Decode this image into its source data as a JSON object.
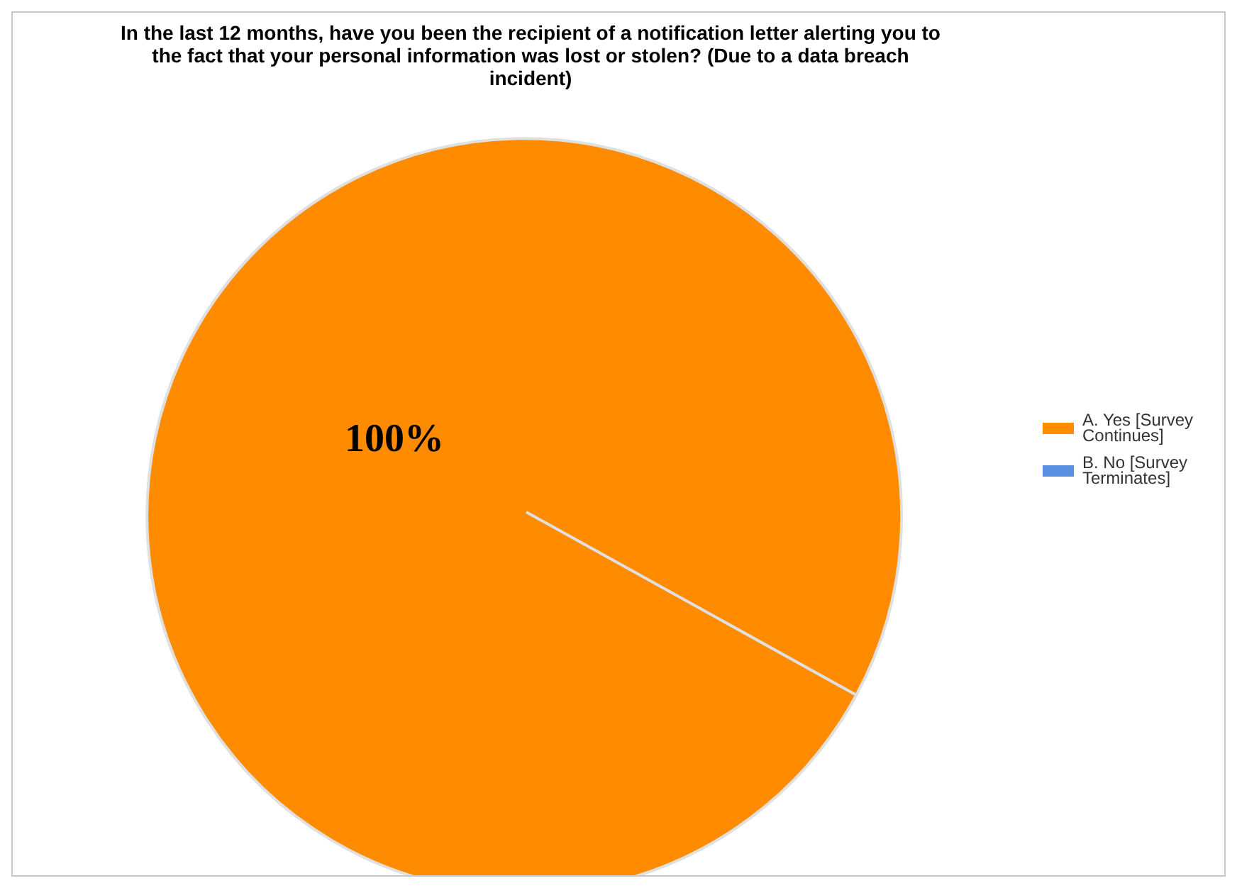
{
  "chart_data": {
    "type": "pie",
    "title": "In the last 12 months, have you been the recipient of a notification letter alerting you to the fact that your personal information was lost or stolen? (Due to a data breach incident)",
    "categories": [
      "A. Yes [Survey Continues]",
      "B. No [Survey Terminates]"
    ],
    "values": [
      100,
      0
    ],
    "colors": [
      "#ff8c00",
      "#5b8fe0"
    ],
    "value_labels": [
      "100%",
      null
    ],
    "legend": "right"
  }
}
